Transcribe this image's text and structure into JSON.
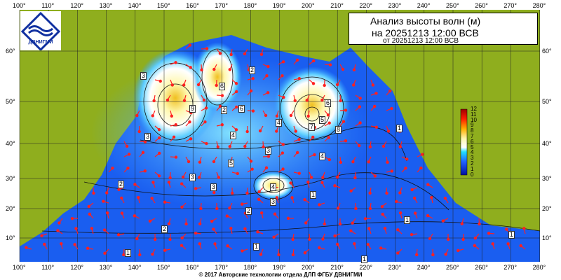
{
  "title": {
    "line1": "Анализ высоты волн (м)",
    "line2": "на 20251213 12:00 ВСВ",
    "line3": "от 20251213 12:00 ВСВ"
  },
  "logo": {
    "text": "ДВНИГМИ"
  },
  "copyright": "© 2017 Авторские технологии отдела ДЛП ФГБУ ДВНИГМИ",
  "axes": {
    "longitudes": [
      "100°",
      "110°",
      "120°",
      "130°",
      "140°",
      "150°",
      "160°",
      "170°",
      "180°",
      "190°",
      "200°",
      "210°",
      "220°",
      "230°",
      "240°",
      "250°",
      "260°",
      "270°",
      "280°"
    ],
    "latitudes": [
      "60°",
      "50°",
      "40°",
      "30°",
      "20°",
      "10°"
    ]
  },
  "colorbar": {
    "labels": [
      "12",
      "11",
      "10",
      "9",
      "8",
      "7",
      "6",
      "5",
      "4",
      "3",
      "2",
      "1",
      "0"
    ],
    "unit": "m"
  },
  "contour_labels": [
    "3",
    "2",
    "6",
    "9",
    "3",
    "2",
    "6",
    "4",
    "4",
    "5",
    "7",
    "6",
    "3",
    "8",
    "4",
    "3",
    "5",
    "3",
    "4",
    "3",
    "2",
    "2",
    "2",
    "1",
    "1",
    "1",
    "1",
    "1",
    "1",
    "1"
  ],
  "colors": {
    "land": "#8fae1e",
    "ocean_low": "#1040e0",
    "ocean_mid": "#30b0ff",
    "ocean_high": "#fff8b0",
    "peak": "#e0a000",
    "arrow": "#ff2020"
  }
}
